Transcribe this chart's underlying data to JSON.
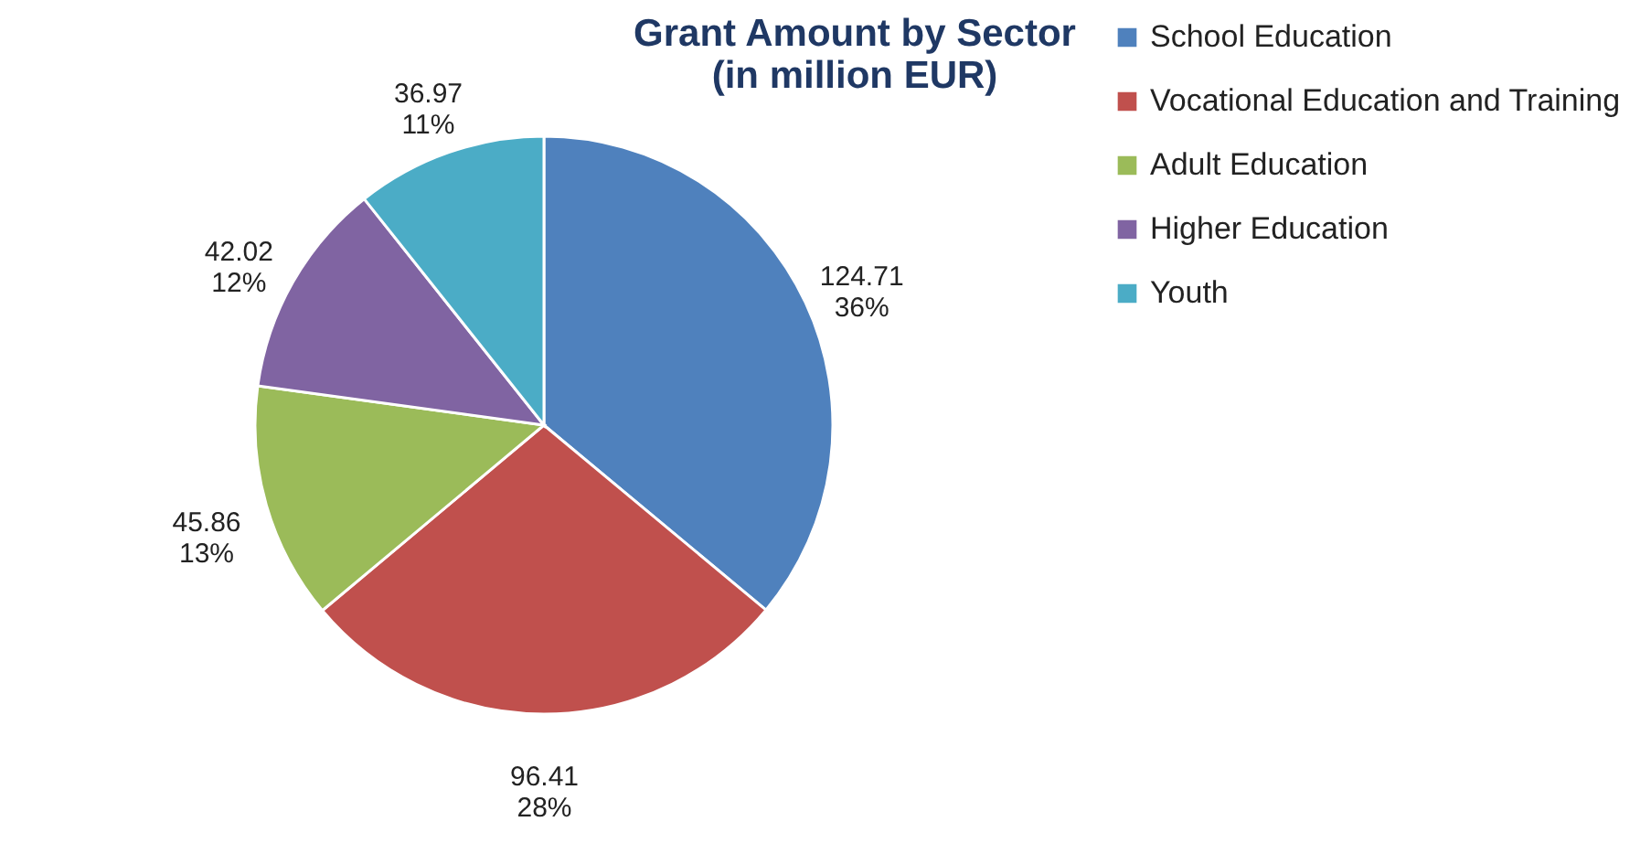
{
  "chart_data": {
    "type": "pie",
    "title": [
      "Grant Amount by Sector",
      "(in million EUR)"
    ],
    "categories": [
      "School Education",
      "Vocational Education and Training",
      "Adult Education",
      "Higher Education",
      "Youth"
    ],
    "values": [
      124.71,
      96.41,
      45.86,
      42.02,
      36.97
    ],
    "colors": [
      "#4f81bd",
      "#c0504d",
      "#9bbb59",
      "#8064a2",
      "#4bacc6"
    ],
    "value_labels": [
      "124.71\n36%",
      "96.41\n28%",
      "45.86\n13%",
      "42.02\n12%",
      "36.97\n11%"
    ],
    "legend": "right"
  }
}
